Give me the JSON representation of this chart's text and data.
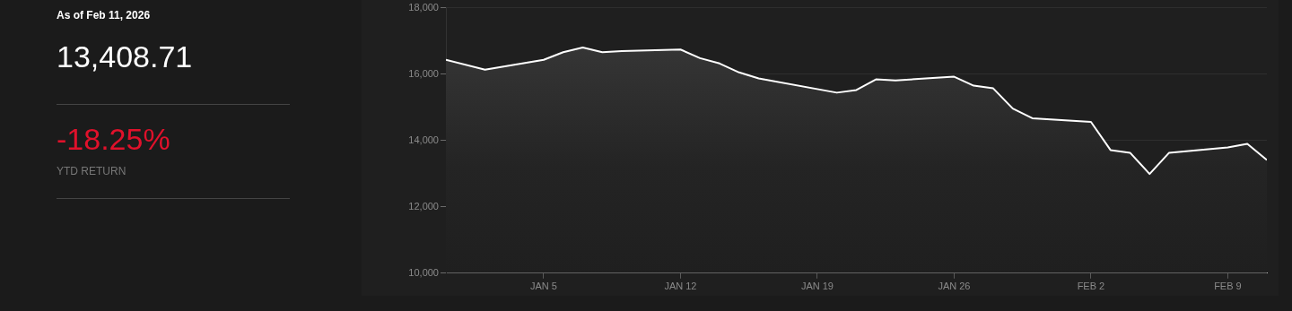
{
  "chart_data": {
    "type": "area",
    "annotations": [
      "As of Feb 11, 2026",
      "13,408.71",
      "-18.25%",
      "YTD RETURN"
    ],
    "x": [
      "2025-12-31",
      "2026-01-02",
      "2026-01-05",
      "2026-01-06",
      "2026-01-07",
      "2026-01-08",
      "2026-01-09",
      "2026-01-12",
      "2026-01-13",
      "2026-01-14",
      "2026-01-15",
      "2026-01-16",
      "2026-01-20",
      "2026-01-21",
      "2026-01-22",
      "2026-01-23",
      "2026-01-26",
      "2026-01-27",
      "2026-01-28",
      "2026-01-29",
      "2026-01-30",
      "2026-02-02",
      "2026-02-03",
      "2026-02-04",
      "2026-02-05",
      "2026-02-06",
      "2026-02-09",
      "2026-02-10",
      "2026-02-11"
    ],
    "series": [
      {
        "color": "#ffffff",
        "values": [
          16430,
          16130,
          16430,
          16660,
          16800,
          16660,
          16690,
          16740,
          16480,
          16320,
          16050,
          15870,
          15440,
          15520,
          15840,
          15810,
          15920,
          15650,
          15570,
          14960,
          14670,
          14560,
          13710,
          13630,
          12990,
          13630,
          13790,
          13900,
          13409
        ]
      }
    ],
    "xlim": [
      "2025-12-31",
      "2026-02-11"
    ],
    "xticks": [
      {
        "value": "2026-01-05",
        "label": "JAN 5"
      },
      {
        "value": "2026-01-12",
        "label": "JAN 12"
      },
      {
        "value": "2026-01-19",
        "label": "JAN 19"
      },
      {
        "value": "2026-01-26",
        "label": "JAN 26"
      },
      {
        "value": "2026-02-02",
        "label": "FEB 2"
      },
      {
        "value": "2026-02-09",
        "label": "FEB 9"
      }
    ],
    "ylim": [
      10000,
      18000
    ],
    "yticks": [
      {
        "value": 10000,
        "label": "10,000"
      },
      {
        "value": 12000,
        "label": "12,000"
      },
      {
        "value": 14000,
        "label": "14,000"
      },
      {
        "value": 16000,
        "label": "16,000"
      },
      {
        "value": 18000,
        "label": "18,000"
      }
    ],
    "grid": "y",
    "legend": false,
    "marker": "none"
  }
}
